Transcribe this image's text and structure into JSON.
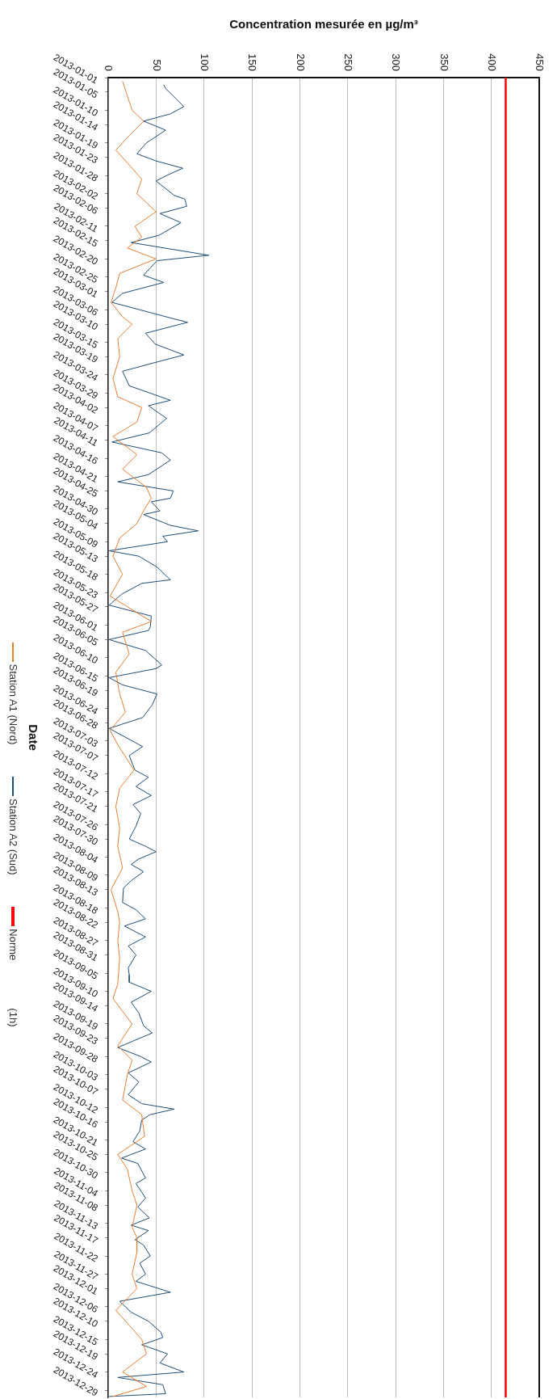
{
  "chart_data": {
    "type": "line",
    "orientation": "horizontal",
    "xlabel": "Concentration mesurée en µg/m³",
    "ylabel": "Date",
    "legend": "left",
    "grid": "x",
    "xlim": [
      0,
      450
    ],
    "xticks": [
      0,
      50,
      100,
      150,
      200,
      250,
      300,
      350,
      400,
      450
    ],
    "ylim": [
      "2013-12-31",
      "2013-01-01"
    ],
    "yticks": [
      "2013-01-01",
      "2013-01-05",
      "2013-01-10",
      "2013-01-14",
      "2013-01-19",
      "2013-01-23",
      "2013-01-28",
      "2013-02-02",
      "2013-02-06",
      "2013-02-11",
      "2013-02-15",
      "2013-02-20",
      "2013-02-25",
      "2013-03-01",
      "2013-03-06",
      "2013-03-10",
      "2013-03-15",
      "2013-03-19",
      "2013-03-24",
      "2013-03-29",
      "2013-04-02",
      "2013-04-07",
      "2013-04-11",
      "2013-04-16",
      "2013-04-21",
      "2013-04-25",
      "2013-04-30",
      "2013-05-04",
      "2013-05-09",
      "2013-05-13",
      "2013-05-18",
      "2013-05-23",
      "2013-05-27",
      "2013-06-01",
      "2013-06-05",
      "2013-06-10",
      "2013-06-15",
      "2013-06-19",
      "2013-06-24",
      "2013-06-28",
      "2013-07-03",
      "2013-07-07",
      "2013-07-12",
      "2013-07-17",
      "2013-07-21",
      "2013-07-26",
      "2013-07-30",
      "2013-08-04",
      "2013-08-09",
      "2013-08-13",
      "2013-08-18",
      "2013-08-22",
      "2013-08-27",
      "2013-08-31",
      "2013-09-05",
      "2013-09-10",
      "2013-09-14",
      "2013-09-19",
      "2013-09-23",
      "2013-09-28",
      "2013-10-03",
      "2013-10-07",
      "2013-10-12",
      "2013-10-16",
      "2013-10-21",
      "2013-10-25",
      "2013-10-30",
      "2013-11-04",
      "2013-11-08",
      "2013-11-13",
      "2013-11-17",
      "2013-11-22",
      "2013-11-27",
      "2013-12-01",
      "2013-12-06",
      "2013-12-10",
      "2013-12-15",
      "2013-12-19",
      "2013-12-24",
      "2013-12-29"
    ],
    "series": [
      {
        "name": "Station A1 (Nord)",
        "color": "#ed7d31",
        "x": [
          "2013-01-02",
          "2013-01-06",
          "2013-01-10",
          "2013-01-13",
          "2013-01-17",
          "2013-01-21",
          "2013-01-26",
          "2013-01-29",
          "2013-02-02",
          "2013-02-04",
          "2013-02-07",
          "2013-02-11",
          "2013-02-14",
          "2013-02-17",
          "2013-02-20",
          "2013-02-24",
          "2013-02-28",
          "2013-03-04",
          "2013-03-08",
          "2013-03-10",
          "2013-03-14",
          "2013-03-19",
          "2013-03-25",
          "2013-03-30",
          "2013-04-02",
          "2013-04-06",
          "2013-04-10",
          "2013-04-15",
          "2013-04-19",
          "2013-04-24",
          "2013-04-27",
          "2013-04-30",
          "2013-05-04",
          "2013-05-08",
          "2013-05-13",
          "2013-05-18",
          "2013-05-24",
          "2013-05-31",
          "2013-06-03",
          "2013-06-09",
          "2013-06-14",
          "2013-06-20",
          "2013-06-25",
          "2013-06-30",
          "2013-07-04",
          "2013-07-11",
          "2013-07-16",
          "2013-07-21",
          "2013-07-27",
          "2013-08-01",
          "2013-08-07",
          "2013-08-13",
          "2013-08-19",
          "2013-08-22",
          "2013-08-27",
          "2013-09-01",
          "2013-09-08",
          "2013-09-12",
          "2013-09-19",
          "2013-09-25",
          "2013-09-29",
          "2013-10-03",
          "2013-10-10",
          "2013-10-14",
          "2013-10-20",
          "2013-10-25",
          "2013-10-29",
          "2013-11-04",
          "2013-11-08",
          "2013-11-14",
          "2013-11-17",
          "2013-11-21",
          "2013-11-27",
          "2013-12-01",
          "2013-12-07",
          "2013-12-12",
          "2013-12-15",
          "2013-12-19",
          "2013-12-24",
          "2013-12-28",
          "2013-12-30T18:00"
        ],
        "values": [
          15,
          20,
          25,
          37,
          22,
          8,
          25,
          35,
          30,
          38,
          50,
          28,
          35,
          20,
          50,
          12,
          8,
          3,
          15,
          25,
          10,
          12,
          5,
          10,
          35,
          30,
          5,
          30,
          15,
          40,
          45,
          38,
          30,
          12,
          5,
          15,
          2,
          45,
          15,
          22,
          8,
          12,
          18,
          2,
          10,
          27,
          12,
          8,
          12,
          10,
          15,
          3,
          10,
          12,
          10,
          12,
          10,
          5,
          25,
          10,
          25,
          20,
          15,
          35,
          38,
          10,
          20,
          25,
          30,
          25,
          30,
          30,
          25,
          30,
          8,
          25,
          35,
          40,
          15,
          40,
          5
        ]
      },
      {
        "name": "Station A2 (Sud)",
        "color": "#1f4e79",
        "x": [
          "2013-01-03",
          "2013-01-04",
          "2013-01-09",
          "2013-01-11",
          "2013-01-13",
          "2013-01-15T12:00",
          "2013-01-19",
          "2013-01-22",
          "2013-01-24",
          "2013-01-26",
          "2013-01-28",
          "2013-01-29T12:00",
          "2013-02-02T12:00",
          "2013-02-03T12:00",
          "2013-02-05T12:00",
          "2013-02-07T12:00",
          "2013-02-10",
          "2013-02-13T12:00",
          "2013-02-15T12:00",
          "2013-02-19",
          "2013-02-20T12:00",
          "2013-02-24T12:00",
          "2013-02-26T12:00",
          "2013-03-01T12:00",
          "2013-03-04",
          "2013-03-08T12:00",
          "2013-03-09T12:00",
          "2013-03-12T12:00",
          "2013-03-15T12:00",
          "2013-03-18T12:00",
          "2013-03-21",
          "2013-03-23",
          "2013-03-27",
          "2013-03-31",
          "2013-04-01T12:00",
          "2013-04-05",
          "2013-04-09",
          "2013-04-11T12:00",
          "2013-04-14T12:00",
          "2013-04-16T12:00",
          "2013-04-20T12:00",
          "2013-04-22T12:00",
          "2013-04-25",
          "2013-04-27",
          "2013-04-28",
          "2013-04-30T12:00",
          "2013-05-01T12:00",
          "2013-05-04T12:00",
          "2013-05-06",
          "2013-05-07T12:00",
          "2013-05-09",
          "2013-05-11T12:00",
          "2013-05-13",
          "2013-05-16",
          "2013-05-19T12:00",
          "2013-05-20T12:00",
          "2013-05-23T12:00",
          "2013-05-26T12:00",
          "2013-05-29T12:00",
          "2013-06-01T12:00",
          "2013-06-02T12:00",
          "2013-06-05",
          "2013-06-08",
          "2013-06-12",
          "2013-06-13",
          "2013-06-15T12:00",
          "2013-06-17T12:00",
          "2013-06-20",
          "2013-06-23",
          "2013-06-26T12:00",
          "2013-06-29T12:00",
          "2013-07-04T12:00",
          "2013-07-07",
          "2013-07-11",
          "2013-07-13",
          "2013-07-15T12:00",
          "2013-07-18",
          "2013-07-20T12:00",
          "2013-07-23",
          "2013-07-26T12:00",
          "2013-07-30",
          "2013-08-01",
          "2013-08-02T12:00",
          "2013-08-04T12:00",
          "2013-08-06",
          "2013-08-08",
          "2013-08-10T12:00",
          "2013-08-12T12:00",
          "2013-08-16T12:00",
          "2013-08-18T12:00",
          "2013-08-21",
          "2013-08-23",
          "2013-08-26",
          "2013-08-28T12:00",
          "2013-08-31",
          "2013-09-03T12:00",
          "2013-09-05T12:00",
          "2013-09-07T12:00",
          "2013-09-10",
          "2013-09-13",
          "2013-09-16",
          "2013-09-19T12:00",
          "2013-09-21T12:00",
          "2013-09-25T12:00",
          "2013-09-28",
          "2013-09-29T12:00",
          "2013-10-02T12:00",
          "2013-10-05",
          "2013-10-08T12:00",
          "2013-10-11",
          "2013-10-12T12:00",
          "2013-10-14",
          "2013-10-15T12:00",
          "2013-10-18T12:00",
          "2013-10-21T12:00",
          "2013-10-23T12:00",
          "2013-10-26",
          "2013-10-27T12:00",
          "2013-10-31T12:00",
          "2013-11-02",
          "2013-11-06",
          "2013-11-08T12:00",
          "2013-11-11T12:00",
          "2013-11-13T12:00",
          "2013-11-15",
          "2013-11-17T12:00",
          "2013-11-19",
          "2013-11-22",
          "2013-11-24",
          "2013-11-27",
          "2013-11-29",
          "2013-12-02",
          "2013-12-04T12:00",
          "2013-12-07T12:00",
          "2013-12-10",
          "2013-12-13",
          "2013-12-14T12:00",
          "2013-12-16T12:00",
          "2013-12-19",
          "2013-12-21T12:00",
          "2013-12-24",
          "2013-12-25T12:00",
          "2013-12-27T12:00",
          "2013-12-30",
          "2013-12-30T18:00"
        ],
        "values": [
          58,
          60,
          79,
          65,
          37,
          60,
          40,
          30,
          50,
          78,
          61,
          50,
          69,
          80,
          82,
          54,
          76,
          53,
          24,
          105,
          51,
          37,
          58,
          15,
          4,
          68,
          83,
          39,
          49,
          79,
          43,
          15,
          22,
          65,
          42,
          61,
          43,
          4,
          56,
          65,
          42,
          10,
          68,
          65,
          45,
          54,
          37,
          65,
          94,
          57,
          62,
          1,
          32,
          51,
          65,
          35,
          14,
          1,
          45,
          44,
          42,
          1,
          39,
          56,
          50,
          1,
          15,
          51,
          46,
          36,
          1,
          36,
          22,
          28,
          42,
          29,
          45,
          26,
          34,
          29,
          22,
          39,
          50,
          32,
          24,
          37,
          24,
          16,
          15,
          29,
          39,
          17,
          39,
          21,
          29,
          21,
          22,
          22,
          45,
          24,
          32,
          37,
          46,
          10,
          34,
          45,
          21,
          32,
          21,
          35,
          69,
          44,
          35,
          33,
          26,
          39,
          14,
          31,
          39,
          29,
          39,
          31,
          43,
          24,
          42,
          28,
          37,
          44,
          33,
          39,
          29,
          65,
          12,
          24,
          42,
          55,
          57,
          35,
          62,
          54,
          79,
          10,
          57,
          60,
          1
        ]
      },
      {
        "name": "Norme",
        "color": "#ff0000",
        "x": [
          "2013-01-01",
          "2013-12-31"
        ],
        "values": [
          415,
          415
        ]
      }
    ],
    "annotations": [
      "(1h)"
    ]
  }
}
